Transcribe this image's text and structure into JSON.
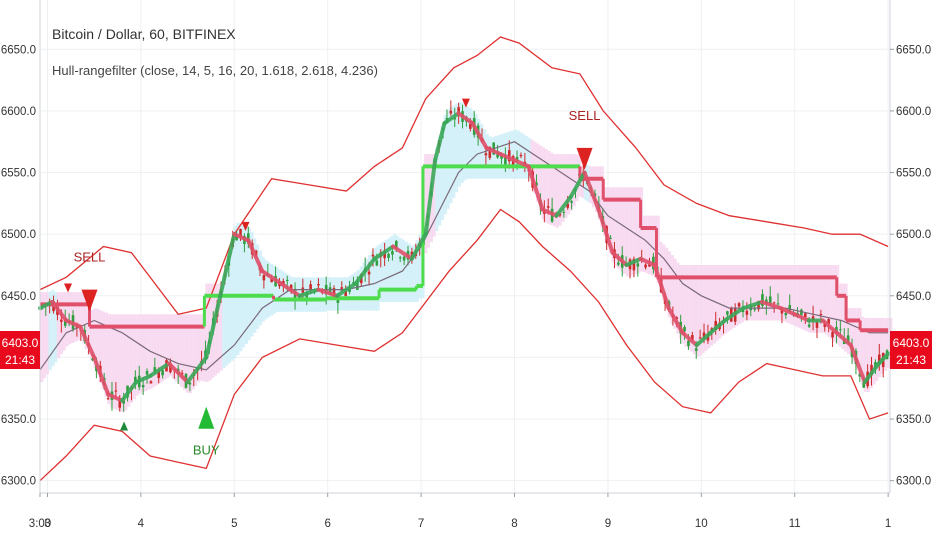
{
  "header": {
    "title": "Bitcoin / Dollar, 60, BITFINEX",
    "indicator": "Hull-rangefilter (close, 14, 5, 16, 20, 1.618, 2.618, 4.236)"
  },
  "price_tag": {
    "price": "6403.0",
    "countdown": "21:43"
  },
  "colors": {
    "band": "#e03030",
    "hull": "#e0506a",
    "filter_up": "#4cdc4c",
    "filter_down": "#e0506a",
    "vwma": "#7a6a7a",
    "cloud_up": "#cfeef8",
    "cloud_down": "#f7d6ef",
    "candle_up": "#2e9e3e",
    "candle_down": "#cc2a2a",
    "buy": "#22bb33",
    "sell": "#dd2222",
    "grid": "#eef0f2",
    "tag_bg": "#e8091d"
  },
  "chart_data": {
    "type": "line",
    "title": "Bitcoin / Dollar, 60, BITFINEX",
    "ylim": [
      6290,
      6690
    ],
    "y_ticks": [
      6300,
      6350,
      6400,
      6450,
      6500,
      6550,
      6600,
      6650
    ],
    "y_tick_labels": [
      "6300.0",
      "6350.0",
      "6400.0",
      "6450.0",
      "6500.0",
      "6550.0",
      "6600.0",
      "6650.0"
    ],
    "x_range": [
      2.92,
      12.02
    ],
    "x_ticks": [
      3,
      4,
      5,
      6,
      7,
      8,
      9,
      10,
      11,
      12
    ],
    "x_tick_labels": [
      "3:00",
      "3",
      "4",
      "5",
      "6",
      "7",
      "8",
      "9",
      "10",
      "11",
      "1"
    ],
    "x_tick_label_positions": [
      2.92,
      3,
      4,
      5,
      6,
      7,
      8,
      9,
      10,
      11,
      12
    ],
    "grid": true,
    "series": [
      {
        "name": "upper band",
        "x": [
          2.92,
          3.2,
          3.6,
          3.9,
          4.15,
          4.4,
          4.7,
          5.0,
          5.4,
          5.8,
          6.2,
          6.5,
          6.8,
          7.05,
          7.35,
          7.6,
          7.85,
          8.05,
          8.4,
          8.7,
          8.95,
          9.3,
          9.6,
          9.95,
          10.3,
          10.7,
          11.1,
          11.4,
          11.7,
          12.0
        ],
        "y": [
          6455,
          6465,
          6490,
          6485,
          6460,
          6435,
          6440,
          6500,
          6545,
          6540,
          6535,
          6555,
          6570,
          6610,
          6635,
          6645,
          6660,
          6655,
          6635,
          6630,
          6600,
          6570,
          6540,
          6525,
          6515,
          6510,
          6505,
          6500,
          6500,
          6490
        ]
      },
      {
        "name": "lower band",
        "x": [
          2.92,
          3.2,
          3.5,
          3.8,
          4.1,
          4.4,
          4.7,
          5.0,
          5.3,
          5.7,
          6.1,
          6.5,
          6.8,
          7.0,
          7.3,
          7.6,
          7.85,
          8.05,
          8.3,
          8.6,
          8.9,
          9.2,
          9.5,
          9.8,
          10.1,
          10.4,
          10.7,
          11.0,
          11.3,
          11.6,
          11.8,
          12.0
        ],
        "y": [
          6300,
          6320,
          6345,
          6340,
          6320,
          6315,
          6310,
          6370,
          6400,
          6415,
          6410,
          6405,
          6420,
          6440,
          6470,
          6495,
          6520,
          6510,
          6490,
          6470,
          6445,
          6410,
          6380,
          6360,
          6355,
          6380,
          6395,
          6390,
          6385,
          6385,
          6350,
          6355
        ]
      },
      {
        "name": "range filter",
        "x": [
          2.92,
          3.45,
          3.45,
          4.68,
          4.68,
          5.42,
          5.42,
          5.98,
          5.98,
          6.55,
          6.55,
          6.95,
          6.95,
          7.02,
          7.02,
          8.7,
          8.7,
          8.95,
          8.95,
          9.35,
          9.35,
          9.52,
          9.52,
          11.45,
          11.45,
          11.55,
          11.55,
          11.7,
          11.7,
          12.0
        ],
        "y": [
          6443,
          6443,
          6425,
          6425,
          6450,
          6450,
          6447,
          6447,
          6448,
          6448,
          6455,
          6455,
          6458,
          6458,
          6555,
          6555,
          6545,
          6545,
          6528,
          6528,
          6505,
          6505,
          6465,
          6465,
          6450,
          6450,
          6430,
          6430,
          6422,
          6422
        ]
      },
      {
        "name": "hull ma",
        "x": [
          2.92,
          3.05,
          3.2,
          3.35,
          3.5,
          3.65,
          3.8,
          3.95,
          4.1,
          4.3,
          4.5,
          4.7,
          4.85,
          5.0,
          5.15,
          5.3,
          5.5,
          5.7,
          5.9,
          6.1,
          6.3,
          6.5,
          6.7,
          6.9,
          7.05,
          7.15,
          7.25,
          7.4,
          7.55,
          7.7,
          7.85,
          8.0,
          8.15,
          8.3,
          8.45,
          8.6,
          8.75,
          8.9,
          9.05,
          9.2,
          9.35,
          9.5,
          9.65,
          9.8,
          9.95,
          10.1,
          10.25,
          10.45,
          10.65,
          10.85,
          11.0,
          11.15,
          11.3,
          11.45,
          11.6,
          11.75,
          11.9,
          12.0
        ],
        "y": [
          6440,
          6445,
          6430,
          6425,
          6400,
          6370,
          6365,
          6380,
          6385,
          6395,
          6380,
          6400,
          6450,
          6500,
          6495,
          6470,
          6460,
          6450,
          6455,
          6450,
          6460,
          6480,
          6490,
          6480,
          6500,
          6560,
          6590,
          6598,
          6590,
          6570,
          6565,
          6560,
          6555,
          6520,
          6515,
          6530,
          6550,
          6520,
          6485,
          6475,
          6480,
          6475,
          6440,
          6420,
          6410,
          6420,
          6430,
          6440,
          6445,
          6440,
          6435,
          6430,
          6430,
          6420,
          6410,
          6380,
          6395,
          6403
        ]
      },
      {
        "name": "vwma",
        "x": [
          2.92,
          3.2,
          3.5,
          3.8,
          4.1,
          4.4,
          4.7,
          5.0,
          5.3,
          5.6,
          5.9,
          6.2,
          6.5,
          6.8,
          7.0,
          7.2,
          7.4,
          7.6,
          7.8,
          8.0,
          8.2,
          8.4,
          8.6,
          8.8,
          9.0,
          9.2,
          9.4,
          9.6,
          9.8,
          10.0,
          10.3,
          10.6,
          10.9,
          11.2,
          11.5,
          11.8,
          12.0
        ],
        "y": [
          6390,
          6420,
          6430,
          6420,
          6405,
          6395,
          6390,
          6410,
          6440,
          6455,
          6455,
          6455,
          6460,
          6470,
          6490,
          6520,
          6550,
          6565,
          6570,
          6575,
          6565,
          6555,
          6545,
          6535,
          6515,
          6505,
          6495,
          6480,
          6460,
          6450,
          6440,
          6440,
          6440,
          6435,
          6430,
          6420,
          6420
        ]
      }
    ],
    "signals": [
      {
        "type": "sell",
        "x": 3.45,
        "y": 6455,
        "label": "SELL"
      },
      {
        "type": "buy",
        "x": 4.7,
        "y": 6360,
        "label": "BUY"
      },
      {
        "type": "sell",
        "x": 8.75,
        "y": 6570,
        "label": "SELL"
      }
    ],
    "small_markers": [
      {
        "type": "down",
        "x": 3.22,
        "y": 6460
      },
      {
        "type": "up",
        "x": 3.82,
        "y": 6348
      },
      {
        "type": "down",
        "x": 5.12,
        "y": 6510
      },
      {
        "type": "down",
        "x": 7.48,
        "y": 6610
      }
    ]
  }
}
